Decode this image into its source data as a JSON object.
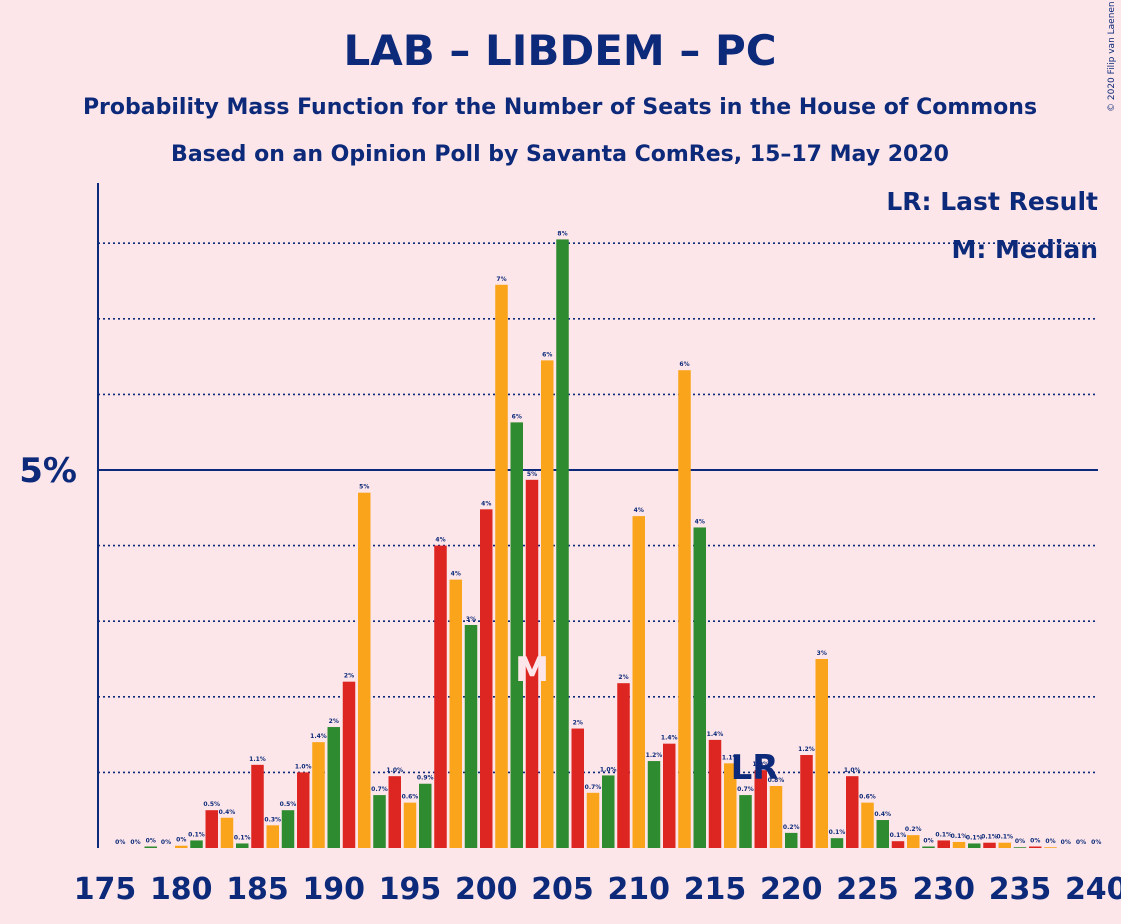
{
  "chart_data": {
    "type": "bar",
    "title": "LAB – LIBDEM – PC",
    "subtitle1": "Probability Mass Function for the Number of Seats in the House of Commons",
    "subtitle2": "Based on an Opinion Poll by Savanta ComRes, 15–17 May 2020",
    "copyright": "© 2020 Filip van Laenen",
    "legend": {
      "lr": "LR: Last Result",
      "m": "M: Median"
    },
    "markers": {
      "lr_text": "LR",
      "m_text": "M",
      "last_result_seat": 217,
      "median_seat": 203
    },
    "ytick_label": "5%",
    "ytick_value": 5,
    "ylim": [
      0,
      8.8
    ],
    "gridlines": [
      1,
      2,
      3,
      4,
      6,
      7,
      8
    ],
    "xlim": [
      175,
      240
    ],
    "xticks": [
      175,
      180,
      185,
      190,
      195,
      200,
      205,
      210,
      215,
      220,
      225,
      230,
      235,
      240
    ],
    "seats": [
      176,
      177,
      178,
      179,
      180,
      181,
      182,
      183,
      184,
      185,
      186,
      187,
      188,
      189,
      190,
      191,
      192,
      193,
      194,
      195,
      196,
      197,
      198,
      199,
      200,
      201,
      202,
      203,
      204,
      205,
      206,
      207,
      208,
      209,
      210,
      211,
      212,
      213,
      214,
      215,
      216,
      217,
      218,
      219,
      220,
      221,
      222,
      223,
      224,
      225,
      226,
      227,
      228,
      229,
      230,
      231,
      232,
      233,
      234,
      235,
      236,
      237,
      238,
      239,
      240
    ],
    "values": [
      0,
      0,
      0.02,
      0,
      0.03,
      0.1,
      0.5,
      0.4,
      0.06,
      1.1,
      0.3,
      0.5,
      1.0,
      1.4,
      1.6,
      2.2,
      4.7,
      0.7,
      0.95,
      0.6,
      0.85,
      4.0,
      3.55,
      2.95,
      4.48,
      7.45,
      5.63,
      4.87,
      6.45,
      8.05,
      1.58,
      0.73,
      0.96,
      2.18,
      4.39,
      1.15,
      1.38,
      6.32,
      4.24,
      1.43,
      1.12,
      0.7,
      1.03,
      0.82,
      0.2,
      1.23,
      2.5,
      0.13,
      0.95,
      0.6,
      0.37,
      0.09,
      0.17,
      0.02,
      0.1,
      0.08,
      0.06,
      0.07,
      0.07,
      0.01,
      0.02,
      0.01,
      0,
      0,
      0
    ],
    "labels": [
      "0%",
      "0%",
      "0%",
      "0%",
      "0%",
      "0.1%",
      "0.5%",
      "0.4%",
      "0.1%",
      "1.1%",
      "0.3%",
      "0.5%",
      "1.0%",
      "1.4%",
      "2%",
      "2%",
      "5%",
      "0.7%",
      "1.0%",
      "0.6%",
      "0.9%",
      "4%",
      "4%",
      "3%",
      "4%",
      "7%",
      "6%",
      "5%",
      "6%",
      "8%",
      "2%",
      "0.7%",
      "1.0%",
      "2%",
      "4%",
      "1.2%",
      "1.4%",
      "6%",
      "4%",
      "1.4%",
      "1.1%",
      "0.7%",
      "1.0%",
      "0.8%",
      "0.2%",
      "1.2%",
      "3%",
      "0.1%",
      "1.0%",
      "0.6%",
      "0.4%",
      "0.1%",
      "0.2%",
      "0%",
      "0.1%",
      "0.1%",
      "0.1%",
      "0.1%",
      "0.1%",
      "0%",
      "0%",
      "0%",
      "0%",
      "0%",
      "0%"
    ],
    "colors": {
      "red": "#dd2621",
      "orange": "#faa41b",
      "green": "#2f8b2f",
      "navy": "#0c2a79",
      "background": "#fde6ea"
    },
    "color_cycle": [
      "red",
      "orange",
      "green"
    ]
  }
}
